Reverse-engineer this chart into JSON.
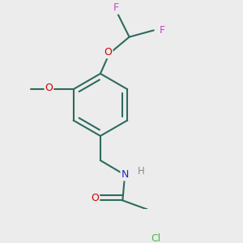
{
  "background_color": "#ececec",
  "bond_color": "#2d6b5e",
  "atom_colors": {
    "F": "#cc44cc",
    "O": "#cc0000",
    "N": "#2222cc",
    "Cl": "#44bb44",
    "C": "#2d6b5e",
    "H": "#888888"
  },
  "figsize": [
    3.0,
    3.0
  ],
  "dpi": 100
}
